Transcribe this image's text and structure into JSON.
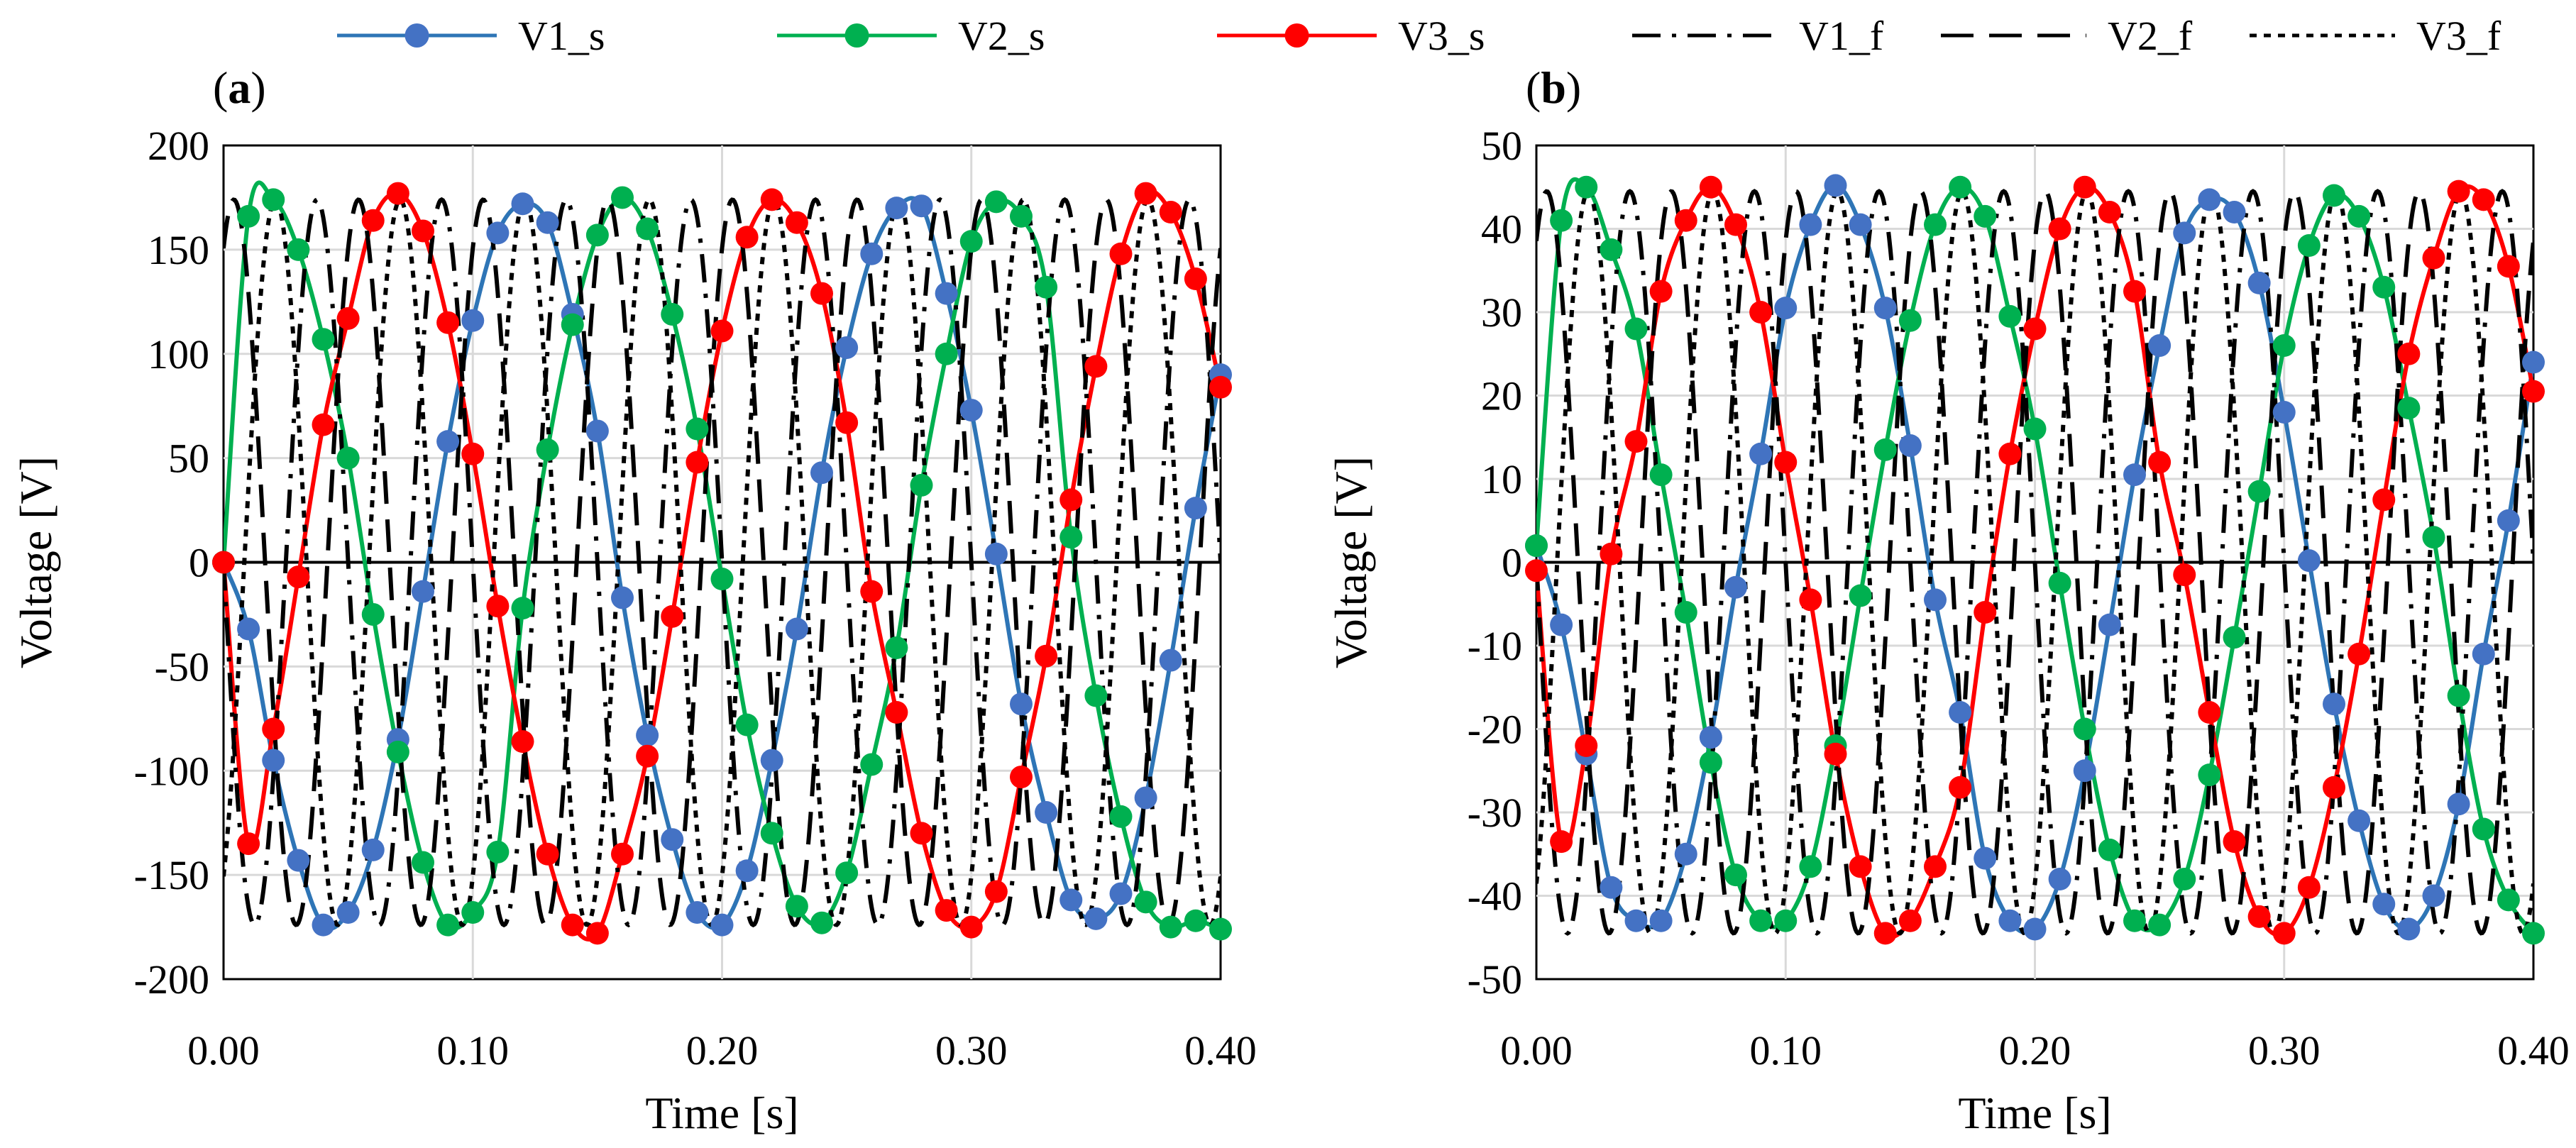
{
  "legend": [
    {
      "name": "V1_s",
      "style": "marker-line",
      "color": "#2e75b6",
      "marker_color": "#4472c4"
    },
    {
      "name": "V2_s",
      "style": "marker-line",
      "color": "#00b050",
      "marker_color": "#00b050"
    },
    {
      "name": "V3_s",
      "style": "marker-line",
      "color": "#ff0000",
      "marker_color": "#ff0000"
    },
    {
      "name": "V1_f",
      "style": "dash-dot",
      "color": "#000000"
    },
    {
      "name": "V2_f",
      "style": "long-dash",
      "color": "#000000"
    },
    {
      "name": "V3_f",
      "style": "short-dash",
      "color": "#000000"
    }
  ],
  "chart_data": [
    {
      "type": "line",
      "panel_label": {
        "open": "(",
        "letter": "a",
        "close": ")"
      },
      "xlabel": "Time [s]",
      "ylabel": "Voltage [V]",
      "xlim": [
        0,
        0.4
      ],
      "ylim": [
        -200,
        200
      ],
      "x_ticks": [
        "0.00",
        "0.10",
        "0.20",
        "0.30",
        "0.40"
      ],
      "x_tick_values": [
        0,
        0.1,
        0.2,
        0.3,
        0.4
      ],
      "y_ticks": [
        "200",
        "150",
        "100",
        "50",
        "0",
        "-50",
        "-100",
        "-150",
        "-200"
      ],
      "y_tick_values": [
        200,
        150,
        100,
        50,
        0,
        -50,
        -100,
        -150,
        -200
      ],
      "grid": true,
      "frequency_hz": 20,
      "amplitude": 174,
      "markers_x": [
        0,
        0.01,
        0.02,
        0.03,
        0.04,
        0.05,
        0.06,
        0.07,
        0.08,
        0.09,
        0.1,
        0.11,
        0.12,
        0.13,
        0.14,
        0.15,
        0.16,
        0.17,
        0.18,
        0.19,
        0.2,
        0.21,
        0.22,
        0.23,
        0.24,
        0.25,
        0.26,
        0.27,
        0.28,
        0.29,
        0.3,
        0.31,
        0.32,
        0.33,
        0.34,
        0.35,
        0.36,
        0.37,
        0.38,
        0.39,
        0.4
      ],
      "series": [
        {
          "name": "V1_s",
          "kind": "simulated",
          "color": "#2e75b6",
          "marker_color": "#4472c4",
          "values": [
            0,
            -32,
            -95,
            -143,
            -174,
            -168,
            -138,
            -85,
            -14,
            58,
            116,
            158,
            172,
            163,
            119,
            63,
            -17,
            -83,
            -133,
            -168,
            -174,
            -148,
            -95,
            -32,
            43,
            103,
            148,
            170,
            171,
            129,
            73,
            4,
            -68,
            -120,
            -162,
            -171,
            -159,
            -113,
            -47,
            26,
            90
          ]
        },
        {
          "name": "V2_s",
          "kind": "simulated",
          "color": "#00b050",
          "marker_color": "#00b050",
          "values": [
            0,
            166,
            174,
            150,
            107,
            50,
            -25,
            -91,
            -144,
            -174,
            -168,
            -139,
            -22,
            54,
            114,
            157,
            175,
            160,
            119,
            64,
            -8,
            -78,
            -130,
            -165,
            -173,
            -149,
            -97,
            -41,
            37,
            100,
            154,
            173,
            166,
            132,
            12,
            -64,
            -122,
            -163,
            -175,
            -172,
            -176
          ]
        },
        {
          "name": "V3_s",
          "kind": "simulated",
          "color": "#ff0000",
          "marker_color": "#ff0000",
          "values": [
            0,
            -135,
            -80,
            -7,
            66,
            117,
            164,
            177,
            159,
            115,
            52,
            -21,
            -86,
            -140,
            -174,
            -178,
            -140,
            -93,
            -26,
            48,
            111,
            156,
            174,
            163,
            129,
            67,
            -14,
            -72,
            -130,
            -167,
            -175,
            -158,
            -103,
            -45,
            30,
            94,
            148,
            177,
            168,
            136,
            84
          ]
        },
        {
          "name": "V1_f",
          "kind": "fitted",
          "dash": "40 16 6 16",
          "phase_deg": 180
        },
        {
          "name": "V2_f",
          "kind": "fitted",
          "dash": "46 22",
          "phase_deg": 60
        },
        {
          "name": "V3_f",
          "kind": "fitted",
          "dash": "10 10",
          "phase_deg": 300
        }
      ]
    },
    {
      "type": "line",
      "panel_label": {
        "open": "(",
        "letter": "b",
        "close": ")"
      },
      "xlabel": "Time [s]",
      "ylabel": "Voltage [V]",
      "xlim": [
        0,
        0.4
      ],
      "ylim": [
        -50,
        50
      ],
      "x_ticks": [
        "0.00",
        "0.10",
        "0.20",
        "0.30",
        "0.40"
      ],
      "x_tick_values": [
        0,
        0.1,
        0.2,
        0.3,
        0.4
      ],
      "y_ticks": [
        "50",
        "40",
        "30",
        "20",
        "10",
        "0",
        "-10",
        "-20",
        "-30",
        "-40",
        "-50"
      ],
      "y_tick_values": [
        50,
        40,
        30,
        20,
        10,
        0,
        -10,
        -20,
        -30,
        -40,
        -50
      ],
      "grid": true,
      "frequency_hz": 20,
      "amplitude": 44.5,
      "markers_x": [
        0,
        0.01,
        0.02,
        0.03,
        0.04,
        0.05,
        0.06,
        0.07,
        0.08,
        0.09,
        0.1,
        0.11,
        0.12,
        0.13,
        0.14,
        0.15,
        0.16,
        0.17,
        0.18,
        0.19,
        0.2,
        0.21,
        0.22,
        0.23,
        0.24,
        0.25,
        0.26,
        0.27,
        0.28,
        0.29,
        0.3,
        0.31,
        0.32,
        0.33,
        0.34,
        0.35,
        0.36,
        0.37,
        0.38,
        0.39,
        0.4
      ],
      "series": [
        {
          "name": "V1_s",
          "kind": "simulated",
          "color": "#2e75b6",
          "marker_color": "#4472c4",
          "values": [
            2,
            -7.5,
            -23,
            -39,
            -43,
            -43,
            -35,
            -21,
            -3,
            13,
            30.5,
            40.5,
            45.2,
            40.5,
            30.5,
            14,
            -4.5,
            -18,
            -35.5,
            -43,
            -44,
            -38,
            -25,
            -7.5,
            10.5,
            26,
            39.5,
            43.5,
            42,
            33.5,
            18,
            0.2,
            -17,
            -31,
            -41,
            -44,
            -40,
            -29,
            -11,
            5,
            24
          ]
        },
        {
          "name": "V2_s",
          "kind": "simulated",
          "color": "#00b050",
          "marker_color": "#00b050",
          "values": [
            2,
            41,
            45,
            37.5,
            28,
            10.5,
            -6,
            -24,
            -37.5,
            -43,
            -43,
            -36.5,
            -22,
            -4,
            13.5,
            29,
            40.5,
            45,
            41.5,
            29.5,
            16,
            -2.5,
            -20,
            -34.5,
            -43,
            -43.5,
            -38,
            -25.5,
            -9,
            8.5,
            26,
            38,
            44,
            41.5,
            33,
            18.5,
            3,
            -16,
            -32,
            -40.5,
            -44.5
          ]
        },
        {
          "name": "V3_s",
          "kind": "simulated",
          "color": "#ff0000",
          "marker_color": "#ff0000",
          "values": [
            -1,
            -33.5,
            -22,
            1,
            14.5,
            32.5,
            41,
            45,
            40.5,
            30,
            12,
            -4.5,
            -23,
            -36.5,
            -44.5,
            -43,
            -36.5,
            -27,
            -6,
            13,
            28,
            40,
            45,
            42,
            32.5,
            12,
            -1.5,
            -18,
            -33.5,
            -42.5,
            -44.5,
            -39,
            -27,
            -11,
            7.5,
            25,
            36.5,
            44.5,
            43.5,
            35.5,
            20.5
          ]
        },
        {
          "name": "V1_f",
          "kind": "fitted",
          "dash": "40 16 6 16",
          "phase_deg": 180
        },
        {
          "name": "V2_f",
          "kind": "fitted",
          "dash": "46 22",
          "phase_deg": 60
        },
        {
          "name": "V3_f",
          "kind": "fitted",
          "dash": "10 10",
          "phase_deg": 300
        }
      ]
    }
  ]
}
